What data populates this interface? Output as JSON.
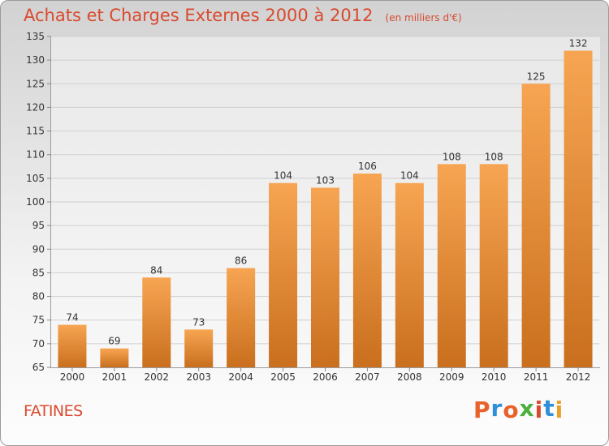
{
  "header": {
    "title": "Achats et Charges Externes 2000 à 2012",
    "unit": "(en milliers d'€)"
  },
  "footer": {
    "commune": "FATINES",
    "brand_letters": [
      "P",
      "r",
      "o",
      "x",
      "i",
      "t",
      "i"
    ],
    "brand_colors": [
      "#e9612a",
      "#2f8fd9",
      "#e9612a",
      "#4caf3c",
      "#d94a2f",
      "#2f8fd9",
      "#e9a02a"
    ]
  },
  "colors": {
    "bar_top": "#f7a552",
    "bar_bottom": "#c96f1e",
    "text": "#d94a2f"
  },
  "chart_data": {
    "type": "bar",
    "categories": [
      "2000",
      "2001",
      "2002",
      "2003",
      "2004",
      "2005",
      "2006",
      "2007",
      "2008",
      "2009",
      "2010",
      "2011",
      "2012"
    ],
    "values": [
      74,
      69,
      84,
      73,
      86,
      104,
      103,
      106,
      104,
      108,
      108,
      125,
      132
    ],
    "ylim": [
      65,
      135
    ],
    "yticks": [
      65,
      70,
      75,
      80,
      85,
      90,
      95,
      100,
      105,
      110,
      115,
      120,
      125,
      130,
      135
    ],
    "grid": true,
    "data_labels": true
  }
}
